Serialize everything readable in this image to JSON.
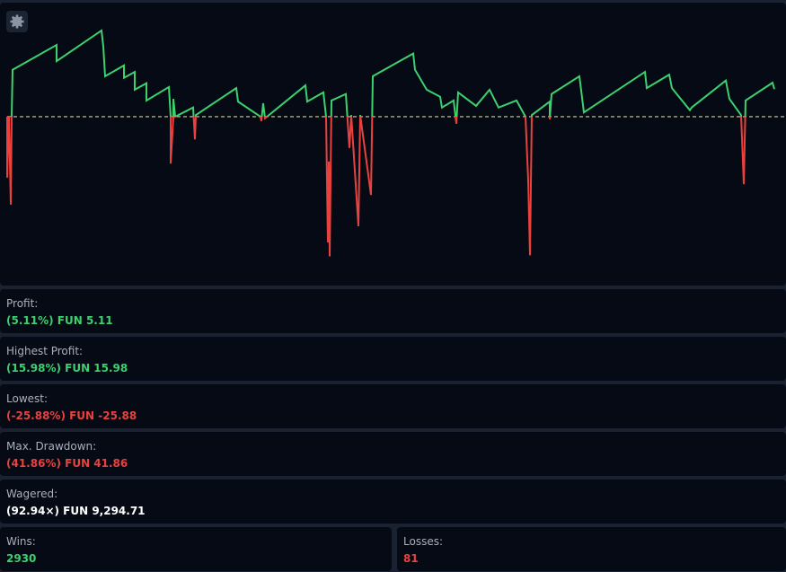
{
  "chart_data": {
    "type": "line",
    "x": [
      0,
      0,
      2,
      4,
      5,
      6,
      55,
      55,
      105,
      107,
      109,
      130,
      130,
      142,
      142,
      155,
      155,
      180,
      182,
      182,
      185,
      185,
      187,
      207,
      209,
      210,
      255,
      257,
      282,
      283,
      285,
      287,
      332,
      334,
      352,
      355,
      357,
      358,
      359,
      361,
      377,
      381,
      383,
      391,
      393,
      405,
      407,
      452,
      454,
      467,
      482,
      484,
      497,
      500,
      502,
      522,
      537,
      547,
      567,
      577,
      580,
      582,
      584,
      604,
      604,
      606,
      637,
      642,
      710,
      712,
      737,
      740,
      760,
      762,
      800,
      804,
      817,
      820,
      822,
      852,
      854
    ],
    "values": [
      0,
      -11.3,
      0,
      -16.3,
      0,
      8.7,
      13.3,
      10.3,
      15.98,
      13,
      7.5,
      9.5,
      7.2,
      8.3,
      5,
      6.2,
      3,
      5.5,
      0,
      -8.7,
      0,
      3.3,
      0,
      1.7,
      -4.2,
      0.3,
      5.3,
      2.8,
      0,
      -0.8,
      2.5,
      -0.3,
      5.8,
      2.8,
      4.5,
      0,
      -23.3,
      -8.3,
      -25.88,
      3,
      4.2,
      -5.8,
      0.3,
      -20.3,
      0.3,
      -14.5,
      7.5,
      11.7,
      8.7,
      5,
      3.7,
      1.7,
      3,
      -1.3,
      4.5,
      2,
      5,
      1.7,
      3,
      0,
      -11.7,
      -25.7,
      0.3,
      2.8,
      -0.5,
      4.2,
      7.5,
      0.8,
      8.3,
      5.3,
      7.8,
      5.3,
      1.2,
      1.7,
      6.7,
      3.3,
      0.3,
      -12.5,
      3,
      6.3,
      5.11
    ],
    "xlim": [
      0,
      854
    ],
    "ylim": [
      -31.3,
      20.8
    ],
    "baseline": 0,
    "color": "#3bd16f",
    "negative_color": "#e9413e",
    "baseline_color": "#d8d08a"
  },
  "stats": [
    {
      "label": "Profit:",
      "value": "(5.11%) FUN 5.11",
      "color": "#3bd16f"
    },
    {
      "label": "Highest Profit:",
      "value": "(15.98%) FUN 15.98",
      "color": "#3bd16f"
    },
    {
      "label": "Lowest:",
      "value": "(-25.88%) FUN -25.88",
      "color": "#e9413e"
    },
    {
      "label": "Max. Drawdown:",
      "value": "(41.86%) FUN 41.86",
      "color": "#e9413e"
    },
    {
      "label": "Wagered:",
      "value": "(92.94×) FUN 9,294.71",
      "color": "#ffffff"
    }
  ],
  "split": [
    {
      "label": "Wins:",
      "value": "2930",
      "color": "#3bd16f"
    },
    {
      "label": "Losses:",
      "value": "81",
      "color": "#e9413e"
    }
  ]
}
